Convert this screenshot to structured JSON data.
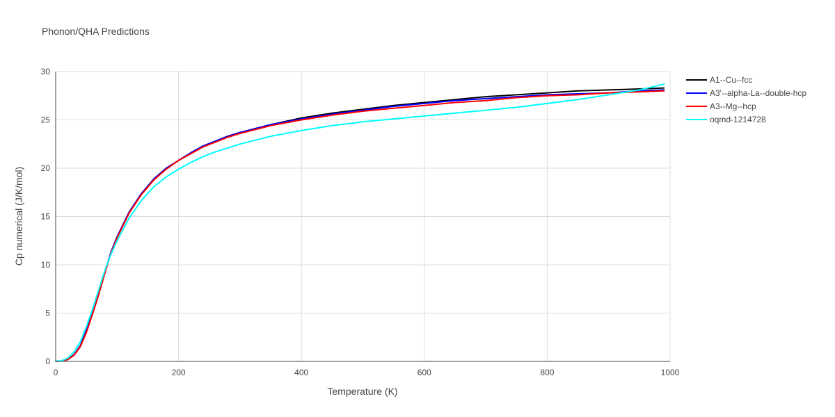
{
  "chart_data": {
    "type": "line",
    "title": "Phonon/QHA Predictions",
    "xlabel": "Temperature (K)",
    "ylabel": "Cp numerical (J/K/mol)",
    "xlim": [
      0,
      1000
    ],
    "ylim": [
      0,
      30
    ],
    "xticks": [
      0,
      200,
      400,
      600,
      800,
      1000
    ],
    "yticks": [
      0,
      5,
      10,
      15,
      20,
      25,
      30
    ],
    "grid": true,
    "legend": "top-right, outside plot",
    "x": [
      0,
      10,
      20,
      30,
      40,
      50,
      60,
      70,
      80,
      90,
      100,
      120,
      140,
      160,
      180,
      200,
      220,
      240,
      260,
      280,
      300,
      350,
      400,
      450,
      500,
      550,
      600,
      650,
      700,
      750,
      800,
      850,
      900,
      950,
      990
    ],
    "series": [
      {
        "name": "A1--Cu--fcc",
        "color": "#000000",
        "values": [
          0,
          0.05,
          0.2,
          0.7,
          1.6,
          3.2,
          5.0,
          7.0,
          9.2,
          11.3,
          12.9,
          15.5,
          17.4,
          18.9,
          20.0,
          20.8,
          21.6,
          22.3,
          22.8,
          23.3,
          23.7,
          24.5,
          25.2,
          25.7,
          26.1,
          26.5,
          26.8,
          27.1,
          27.4,
          27.6,
          27.8,
          28.0,
          28.1,
          28.2,
          28.3
        ]
      },
      {
        "name": "A3'--alpha-La--double-hcp",
        "color": "#0000ff",
        "values": [
          0,
          0.05,
          0.2,
          0.7,
          1.6,
          3.2,
          5.0,
          7.0,
          9.2,
          11.3,
          12.9,
          15.5,
          17.4,
          18.9,
          20.0,
          20.8,
          21.6,
          22.3,
          22.8,
          23.3,
          23.7,
          24.5,
          25.1,
          25.6,
          26.0,
          26.4,
          26.7,
          27.0,
          27.2,
          27.4,
          27.6,
          27.7,
          27.8,
          28.0,
          28.1
        ]
      },
      {
        "name": "A3--Mg--hcp",
        "color": "#ff0000",
        "values": [
          0,
          0.05,
          0.2,
          0.65,
          1.5,
          3.0,
          4.9,
          6.9,
          9.1,
          11.2,
          12.8,
          15.4,
          17.3,
          18.8,
          19.9,
          20.8,
          21.5,
          22.2,
          22.7,
          23.2,
          23.6,
          24.4,
          25.0,
          25.5,
          25.9,
          26.2,
          26.5,
          26.8,
          27.0,
          27.3,
          27.5,
          27.6,
          27.8,
          27.9,
          28.0
        ]
      },
      {
        "name": "oqmd-1214728",
        "color": "#00ffff",
        "values": [
          0,
          0.08,
          0.35,
          1.0,
          2.0,
          3.6,
          5.4,
          7.4,
          9.4,
          11.1,
          12.5,
          14.9,
          16.7,
          18.1,
          19.1,
          19.9,
          20.6,
          21.2,
          21.7,
          22.1,
          22.5,
          23.3,
          23.9,
          24.4,
          24.8,
          25.1,
          25.4,
          25.7,
          26.0,
          26.3,
          26.7,
          27.1,
          27.6,
          28.1,
          28.7
        ]
      }
    ]
  }
}
